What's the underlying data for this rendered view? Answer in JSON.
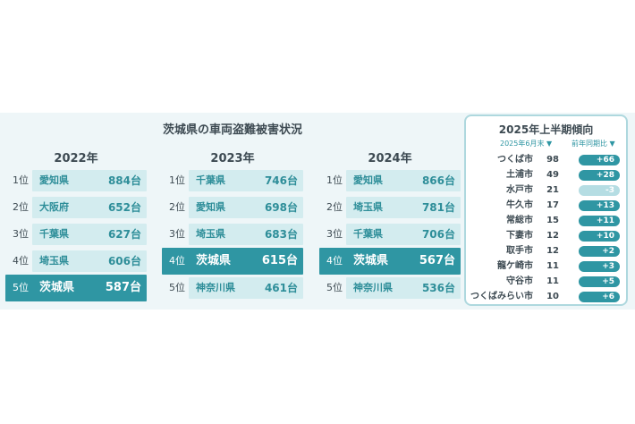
{
  "chart_data": [
    {
      "type": "table",
      "title": "茨城県の車両盗難被害状況",
      "year": "2022年",
      "unit": "台",
      "rows": [
        {
          "rank": "1位",
          "prefecture": "愛知県",
          "value": "884台"
        },
        {
          "rank": "2位",
          "prefecture": "大阪府",
          "value": "652台"
        },
        {
          "rank": "3位",
          "prefecture": "千葉県",
          "value": "627台"
        },
        {
          "rank": "4位",
          "prefecture": "埼玉県",
          "value": "606台"
        },
        {
          "rank": "5位",
          "prefecture": "茨城県",
          "value": "587台"
        }
      ]
    },
    {
      "type": "table",
      "year": "2023年",
      "unit": "台",
      "rows": [
        {
          "rank": "1位",
          "prefecture": "千葉県",
          "value": "746台"
        },
        {
          "rank": "2位",
          "prefecture": "愛知県",
          "value": "698台"
        },
        {
          "rank": "3位",
          "prefecture": "埼玉県",
          "value": "683台"
        },
        {
          "rank": "4位",
          "prefecture": "茨城県",
          "value": "615台"
        },
        {
          "rank": "5位",
          "prefecture": "神奈川県",
          "value": "461台"
        }
      ]
    },
    {
      "type": "table",
      "year": "2024年",
      "unit": "台",
      "rows": [
        {
          "rank": "1位",
          "prefecture": "愛知県",
          "value": "866台"
        },
        {
          "rank": "2位",
          "prefecture": "埼玉県",
          "value": "781台"
        },
        {
          "rank": "3位",
          "prefecture": "千葉県",
          "value": "706台"
        },
        {
          "rank": "4位",
          "prefecture": "茨城県",
          "value": "567台"
        },
        {
          "rank": "5位",
          "prefecture": "神奈川県",
          "value": "536台"
        }
      ]
    },
    {
      "type": "table",
      "title": "2025年上半期傾向",
      "columns": [
        "2025年6月末 ▼",
        "前年同期比 ▼"
      ],
      "rows": [
        {
          "city": "つくば市",
          "count": "98",
          "change": "+66"
        },
        {
          "city": "土浦市",
          "count": "49",
          "change": "+28"
        },
        {
          "city": "水戸市",
          "count": "21",
          "change": "-3"
        },
        {
          "city": "牛久市",
          "count": "17",
          "change": "+13"
        },
        {
          "city": "常総市",
          "count": "15",
          "change": "+11"
        },
        {
          "city": "下妻市",
          "count": "12",
          "change": "+10"
        },
        {
          "city": "取手市",
          "count": "12",
          "change": "+2"
        },
        {
          "city": "龍ケ崎市",
          "count": "11",
          "change": "+3"
        },
        {
          "city": "守谷市",
          "count": "11",
          "change": "+5"
        },
        {
          "city": "つくばみらい市",
          "count": "10",
          "change": "+6"
        }
      ]
    }
  ],
  "highlight_prefecture": "茨城県",
  "colors": {
    "accent": "#2f96a3",
    "cell": "#d3ecef",
    "panel": "#eef6f8",
    "negative": "#b5dde3"
  }
}
